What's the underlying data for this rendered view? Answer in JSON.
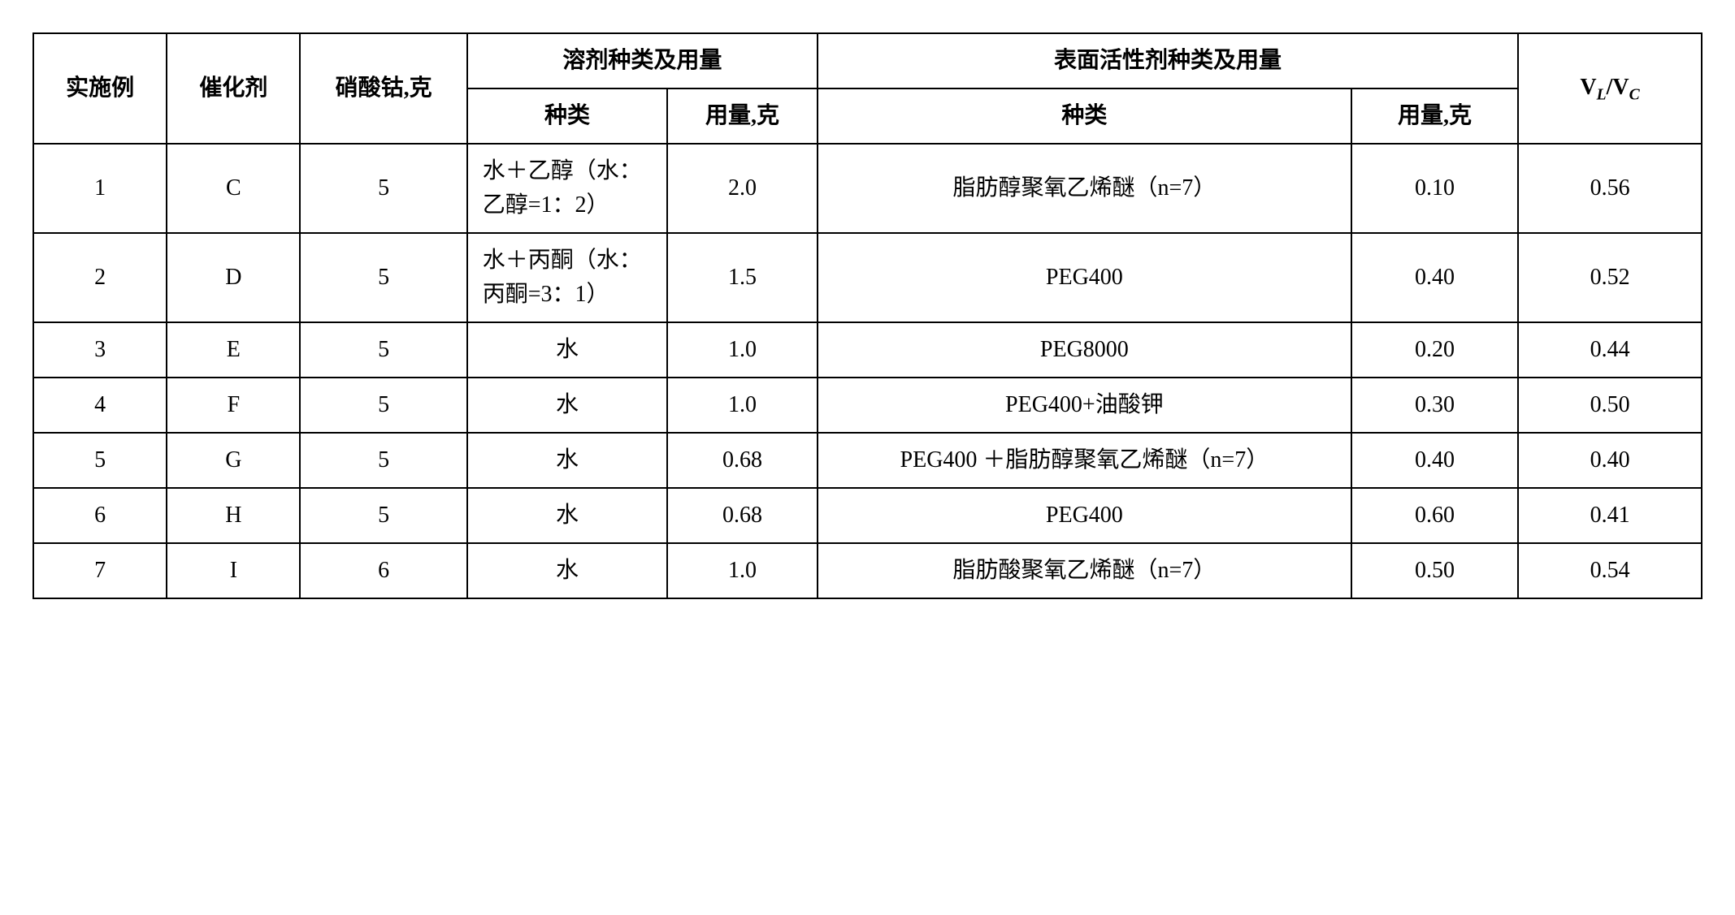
{
  "table": {
    "header": {
      "example": "实施例",
      "catalyst": "催化剂",
      "cobalt_nitrate": "硝酸钴,克",
      "solvent_group": "溶剂种类及用量",
      "solvent_type": "种类",
      "solvent_amount": "用量,克",
      "surfactant_group": "表面活性剂种类及用量",
      "surfactant_type": "种类",
      "surfactant_amount": "用量,克",
      "ratio_html": "V<sub><i>L</i></sub>/V<sub><i>C</i></sub>"
    },
    "rows": [
      {
        "example": "1",
        "catalyst": "C",
        "cobalt_nitrate": "5",
        "solvent_type": "水＋乙醇（水：乙醇=1：2）",
        "solvent_amount": "2.0",
        "surfactant_type": "脂肪醇聚氧乙烯醚（n=7）",
        "surfactant_amount": "0.10",
        "ratio": "0.56"
      },
      {
        "example": "2",
        "catalyst": "D",
        "cobalt_nitrate": "5",
        "solvent_type": "水＋丙酮（水：丙酮=3：1）",
        "solvent_amount": "1.5",
        "surfactant_type": "PEG400",
        "surfactant_amount": "0.40",
        "ratio": "0.52"
      },
      {
        "example": "3",
        "catalyst": "E",
        "cobalt_nitrate": "5",
        "solvent_type": "水",
        "solvent_amount": "1.0",
        "surfactant_type": "PEG8000",
        "surfactant_amount": "0.20",
        "ratio": "0.44"
      },
      {
        "example": "4",
        "catalyst": "F",
        "cobalt_nitrate": "5",
        "solvent_type": "水",
        "solvent_amount": "1.0",
        "surfactant_type": "PEG400+油酸钾",
        "surfactant_amount": "0.30",
        "ratio": "0.50"
      },
      {
        "example": "5",
        "catalyst": "G",
        "cobalt_nitrate": "5",
        "solvent_type": "水",
        "solvent_amount": "0.68",
        "surfactant_type": "PEG400 ＋脂肪醇聚氧乙烯醚（n=7）",
        "surfactant_amount": "0.40",
        "ratio": "0.40"
      },
      {
        "example": "6",
        "catalyst": "H",
        "cobalt_nitrate": "5",
        "solvent_type": "水",
        "solvent_amount": "0.68",
        "surfactant_type": "PEG400",
        "surfactant_amount": "0.60",
        "ratio": "0.41"
      },
      {
        "example": "7",
        "catalyst": "I",
        "cobalt_nitrate": "6",
        "solvent_type": "水",
        "solvent_amount": "1.0",
        "surfactant_type": "脂肪酸聚氧乙烯醚（n=7）",
        "surfactant_amount": "0.50",
        "ratio": "0.54"
      }
    ]
  }
}
